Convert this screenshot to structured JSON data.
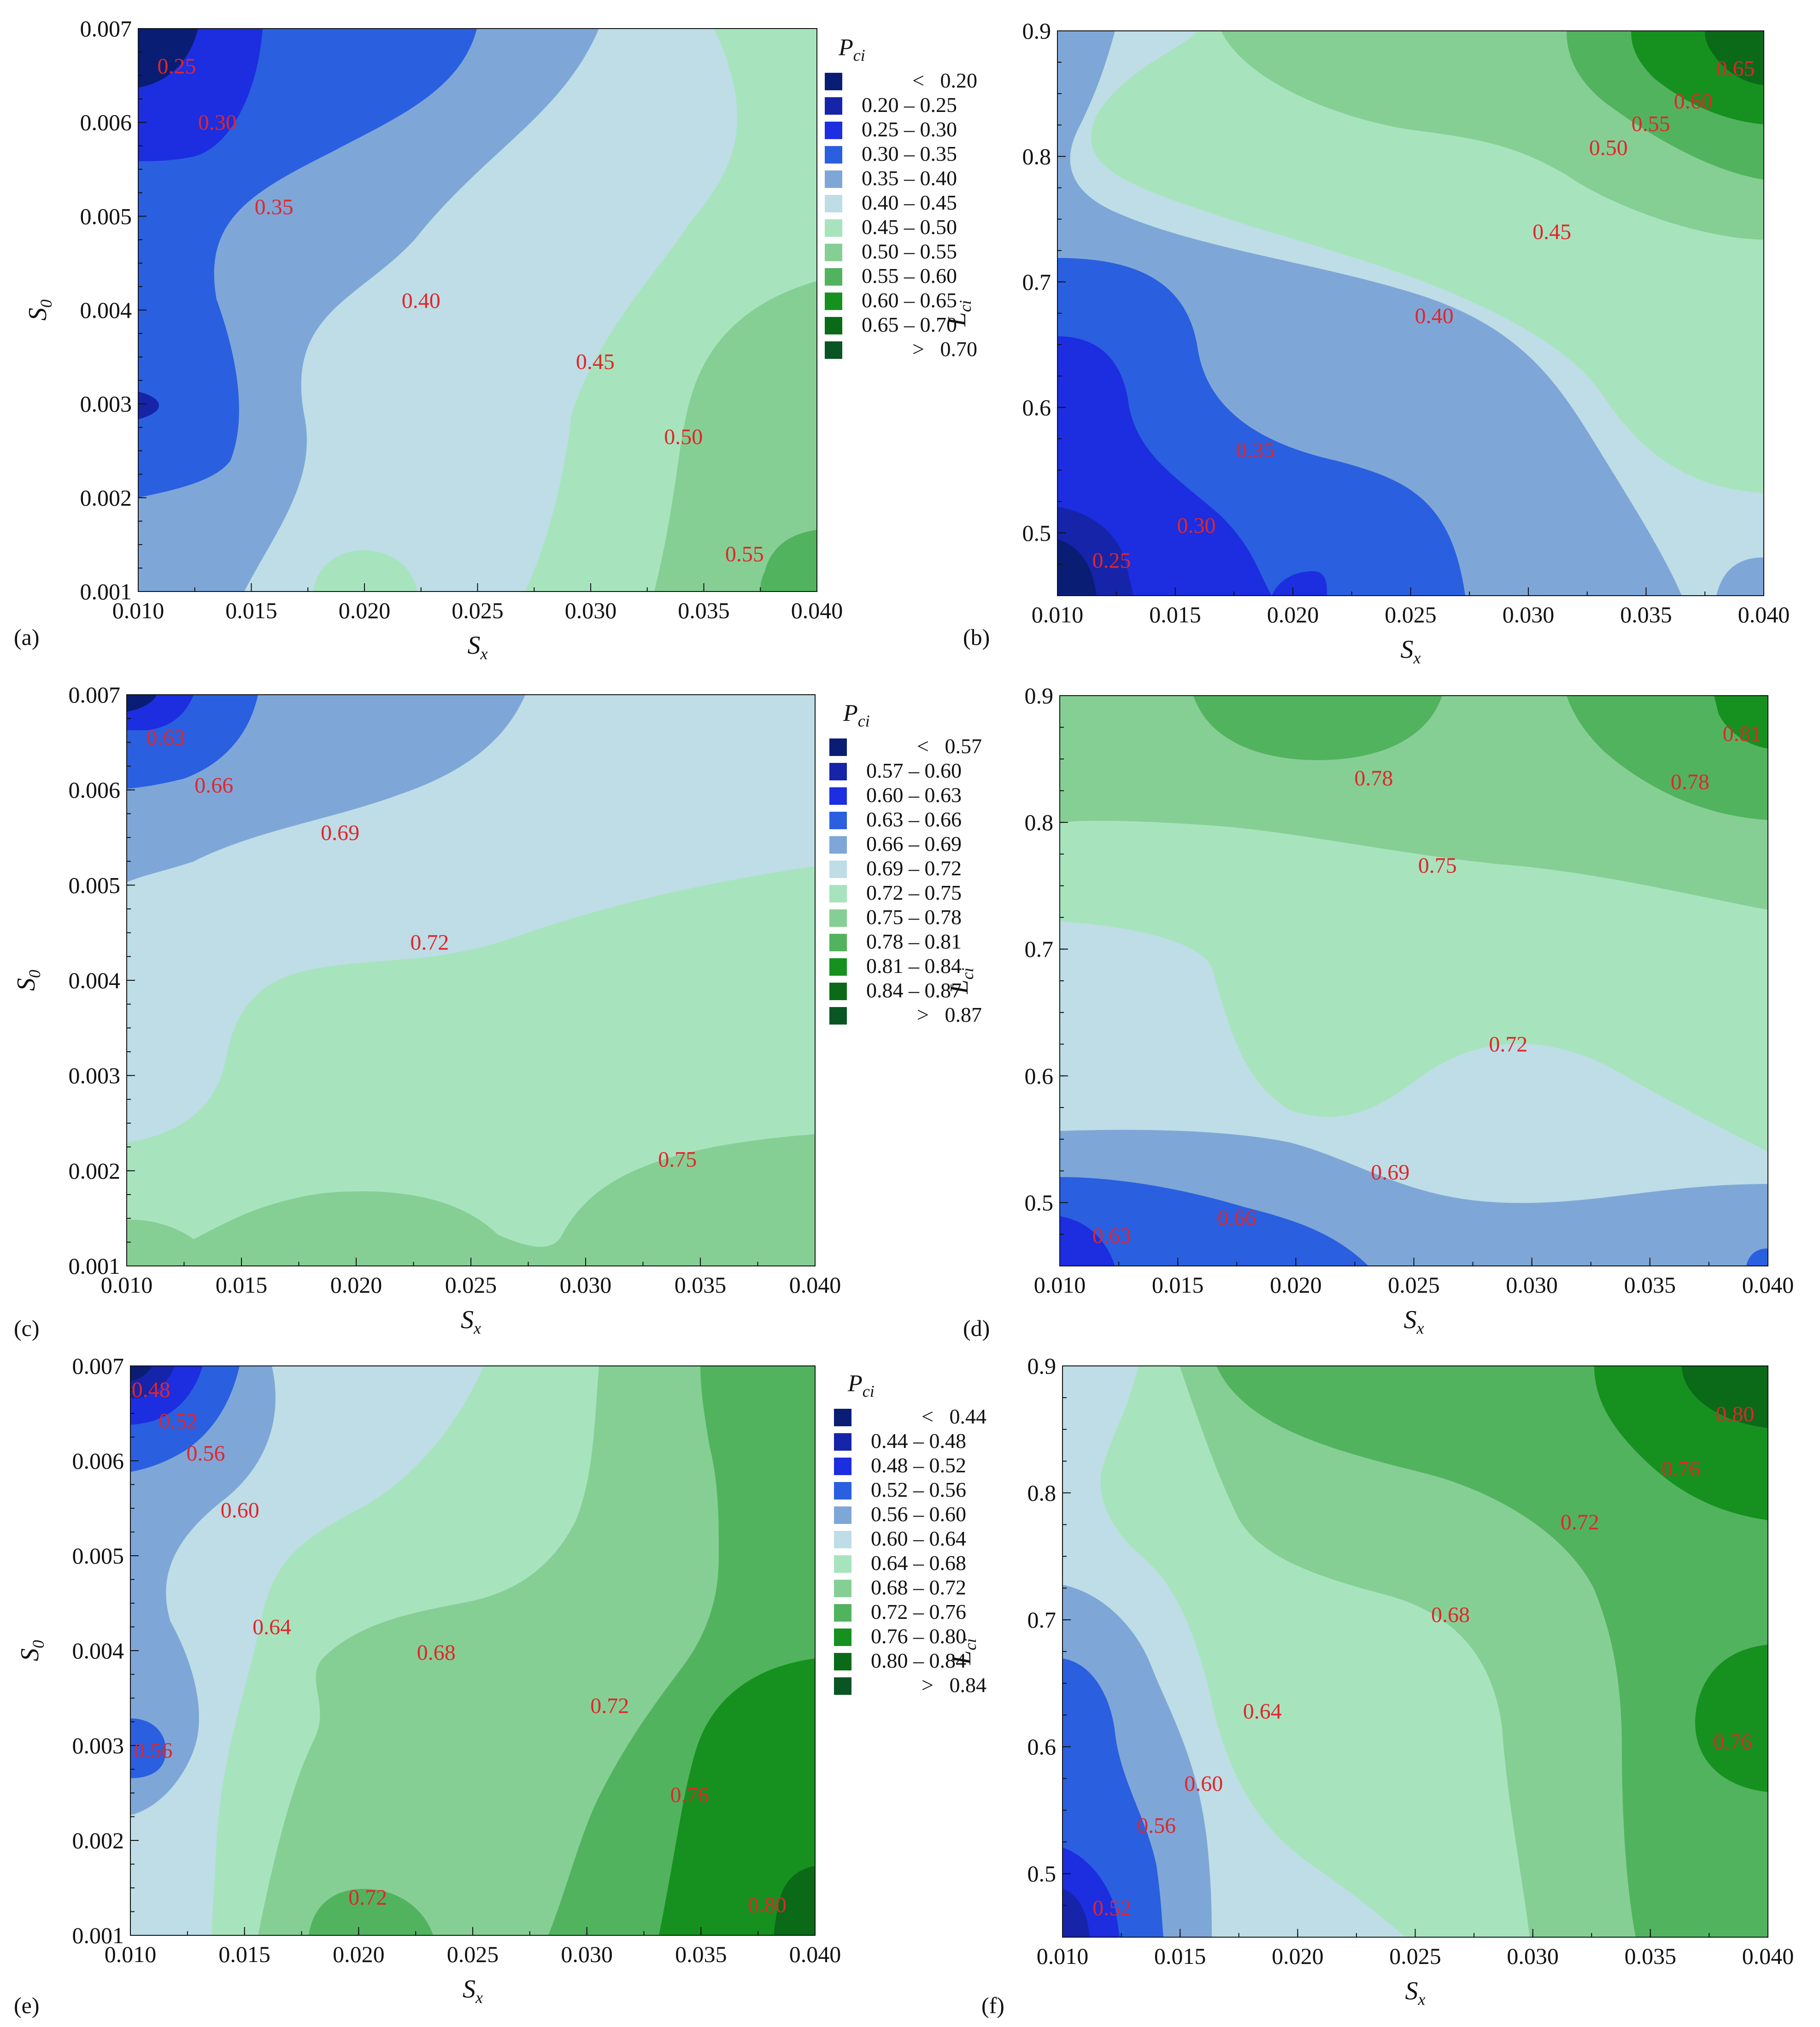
{
  "colors": {
    "blue_scale": [
      "#0a1d75",
      "#1624aa",
      "#1c2ee0",
      "#2a5fe0",
      "#7ea7d8",
      "#bedde6"
    ],
    "green_scale": [
      "#a7e4be",
      "#86cf94",
      "#52b35e",
      "#16911f",
      "#0a6a18",
      "#0a5524"
    ],
    "contour_label": "#e0262b"
  },
  "legends": [
    {
      "title": "P",
      "title_sub": "ci",
      "rows": [
        "< 0.20",
        "0.20 – 0.25",
        "0.25 – 0.30",
        "0.30 – 0.35",
        "0.35 – 0.40",
        "0.40 – 0.45",
        "0.45 – 0.50",
        "0.50 – 0.55",
        "0.55 – 0.60",
        "0.60 – 0.65",
        "0.65 – 0.70",
        "> 0.70"
      ]
    },
    {
      "title": "P",
      "title_sub": "ci",
      "rows": [
        "< 0.57",
        "0.57 – 0.60",
        "0.60 – 0.63",
        "0.63 – 0.66",
        "0.66 – 0.69",
        "0.69 – 0.72",
        "0.72 – 0.75",
        "0.75 – 0.78",
        "0.78 – 0.81",
        "0.81 – 0.84",
        "0.84 – 0.87",
        "> 0.87"
      ]
    },
    {
      "title": "P",
      "title_sub": "ci",
      "rows": [
        "< 0.44",
        "0.44 – 0.48",
        "0.48 – 0.52",
        "0.52 – 0.56",
        "0.56 – 0.60",
        "0.60 – 0.64",
        "0.64 – 0.68",
        "0.68 – 0.72",
        "0.72 – 0.76",
        "0.76 – 0.80",
        "0.80 – 0.84",
        "> 0.84"
      ]
    }
  ],
  "chart_data": [
    {
      "panel": "(a)",
      "type": "heatmap",
      "xlabel": "S",
      "xlabel_sub": "x",
      "ylabel": "S",
      "ylabel_sub": "0",
      "xlim": [
        0.01,
        0.04
      ],
      "ylim": [
        0.001,
        0.007
      ],
      "xticks": [
        "0.010",
        "0.015",
        "0.020",
        "0.025",
        "0.030",
        "0.035",
        "0.040"
      ],
      "yticks": [
        "0.001",
        "0.002",
        "0.003",
        "0.004",
        "0.005",
        "0.006",
        "0.007"
      ],
      "contour_labels": [
        {
          "text": "0.25",
          "x": 0.0117,
          "y": 0.0066
        },
        {
          "text": "0.30",
          "x": 0.0135,
          "y": 0.006
        },
        {
          "text": "0.35",
          "x": 0.016,
          "y": 0.0051
        },
        {
          "text": "0.40",
          "x": 0.0225,
          "y": 0.0041
        },
        {
          "text": "0.45",
          "x": 0.0302,
          "y": 0.00345
        },
        {
          "text": "0.50",
          "x": 0.0341,
          "y": 0.00265
        },
        {
          "text": "0.55",
          "x": 0.0368,
          "y": 0.0014
        }
      ]
    },
    {
      "panel": "(b)",
      "type": "heatmap",
      "xlabel": "S",
      "xlabel_sub": "x",
      "ylabel": "L",
      "ylabel_sub": "ci",
      "xlim": [
        0.01,
        0.04
      ],
      "ylim": [
        0.45,
        0.9
      ],
      "xticks": [
        "0.010",
        "0.015",
        "0.020",
        "0.025",
        "0.030",
        "0.035",
        "0.040"
      ],
      "yticks": [
        "0.5",
        "0.6",
        "0.7",
        "0.8",
        "0.9"
      ],
      "contour_labels": [
        {
          "text": "0.25",
          "x": 0.0123,
          "y": 0.478
        },
        {
          "text": "0.30",
          "x": 0.0159,
          "y": 0.506
        },
        {
          "text": "0.35",
          "x": 0.0184,
          "y": 0.566
        },
        {
          "text": "0.40",
          "x": 0.026,
          "y": 0.673
        },
        {
          "text": "0.45",
          "x": 0.031,
          "y": 0.74
        },
        {
          "text": "0.50",
          "x": 0.0334,
          "y": 0.807
        },
        {
          "text": "0.55",
          "x": 0.0352,
          "y": 0.826
        },
        {
          "text": "0.60",
          "x": 0.037,
          "y": 0.844
        },
        {
          "text": "0.65",
          "x": 0.0388,
          "y": 0.87
        }
      ]
    },
    {
      "panel": "(c)",
      "type": "heatmap",
      "xlabel": "S",
      "xlabel_sub": "x",
      "ylabel": "S",
      "ylabel_sub": "0",
      "xlim": [
        0.01,
        0.04
      ],
      "ylim": [
        0.001,
        0.007
      ],
      "xticks": [
        "0.010",
        "0.015",
        "0.020",
        "0.025",
        "0.030",
        "0.035",
        "0.040"
      ],
      "yticks": [
        "0.001",
        "0.002",
        "0.003",
        "0.004",
        "0.005",
        "0.006",
        "0.007"
      ],
      "contour_labels": [
        {
          "text": "0.63",
          "x": 0.0117,
          "y": 0.00655
        },
        {
          "text": "0.66",
          "x": 0.0138,
          "y": 0.00605
        },
        {
          "text": "0.69",
          "x": 0.0193,
          "y": 0.00555
        },
        {
          "text": "0.72",
          "x": 0.0232,
          "y": 0.0044
        },
        {
          "text": "0.75",
          "x": 0.034,
          "y": 0.00212
        }
      ]
    },
    {
      "panel": "(d)",
      "type": "heatmap",
      "xlabel": "S",
      "xlabel_sub": "x",
      "ylabel": "L",
      "ylabel_sub": "ci",
      "xlim": [
        0.01,
        0.04
      ],
      "ylim": [
        0.45,
        0.9
      ],
      "xticks": [
        "0.010",
        "0.015",
        "0.020",
        "0.025",
        "0.030",
        "0.035",
        "0.040"
      ],
      "yticks": [
        "0.5",
        "0.6",
        "0.7",
        "0.8",
        "0.9"
      ],
      "contour_labels": [
        {
          "text": "0.63",
          "x": 0.0122,
          "y": 0.474
        },
        {
          "text": "0.66",
          "x": 0.0175,
          "y": 0.488
        },
        {
          "text": "0.69",
          "x": 0.024,
          "y": 0.524
        },
        {
          "text": "0.72",
          "x": 0.029,
          "y": 0.625
        },
        {
          "text": "0.75",
          "x": 0.026,
          "y": 0.766
        },
        {
          "text": "0.78",
          "x": 0.0233,
          "y": 0.835
        },
        {
          "text": "0.78",
          "x": 0.0367,
          "y": 0.832
        },
        {
          "text": "0.81",
          "x": 0.0389,
          "y": 0.87
        }
      ]
    },
    {
      "panel": "(e)",
      "type": "heatmap",
      "xlabel": "S",
      "xlabel_sub": "x",
      "ylabel": "S",
      "ylabel_sub": "0",
      "xlim": [
        0.01,
        0.04
      ],
      "ylim": [
        0.001,
        0.007
      ],
      "xticks": [
        "0.010",
        "0.015",
        "0.020",
        "0.025",
        "0.030",
        "0.035",
        "0.040"
      ],
      "yticks": [
        "0.001",
        "0.002",
        "0.003",
        "0.004",
        "0.005",
        "0.006",
        "0.007"
      ],
      "contour_labels": [
        {
          "text": "0.48",
          "x": 0.0109,
          "y": 0.00675
        },
        {
          "text": "0.52",
          "x": 0.0121,
          "y": 0.00642
        },
        {
          "text": "0.56",
          "x": 0.0133,
          "y": 0.00608
        },
        {
          "text": "0.60",
          "x": 0.0148,
          "y": 0.00548
        },
        {
          "text": "0.64",
          "x": 0.0162,
          "y": 0.00425
        },
        {
          "text": "0.68",
          "x": 0.0234,
          "y": 0.00398
        },
        {
          "text": "0.72",
          "x": 0.031,
          "y": 0.00342
        },
        {
          "text": "0.76",
          "x": 0.0345,
          "y": 0.00248
        },
        {
          "text": "0.56",
          "x": 0.011,
          "y": 0.00295
        },
        {
          "text": "0.72",
          "x": 0.0204,
          "y": 0.0014
        },
        {
          "text": "0.80",
          "x": 0.0379,
          "y": 0.00132
        }
      ]
    },
    {
      "panel": "(f)",
      "type": "heatmap",
      "xlabel": "S",
      "xlabel_sub": "x",
      "ylabel": "L",
      "ylabel_sub": "ci",
      "xlim": [
        0.01,
        0.04
      ],
      "ylim": [
        0.45,
        0.9
      ],
      "xticks": [
        "0.010",
        "0.015",
        "0.020",
        "0.025",
        "0.030",
        "0.035",
        "0.040"
      ],
      "yticks": [
        "0.5",
        "0.6",
        "0.7",
        "0.8",
        "0.9"
      ],
      "contour_labels": [
        {
          "text": "0.52",
          "x": 0.0121,
          "y": 0.473
        },
        {
          "text": "0.56",
          "x": 0.014,
          "y": 0.538
        },
        {
          "text": "0.60",
          "x": 0.016,
          "y": 0.571
        },
        {
          "text": "0.64",
          "x": 0.0185,
          "y": 0.628
        },
        {
          "text": "0.68",
          "x": 0.0265,
          "y": 0.704
        },
        {
          "text": "0.72",
          "x": 0.032,
          "y": 0.777
        },
        {
          "text": "0.76",
          "x": 0.0363,
          "y": 0.819
        },
        {
          "text": "0.80",
          "x": 0.0386,
          "y": 0.862
        },
        {
          "text": "0.76",
          "x": 0.0385,
          "y": 0.604
        }
      ]
    }
  ]
}
